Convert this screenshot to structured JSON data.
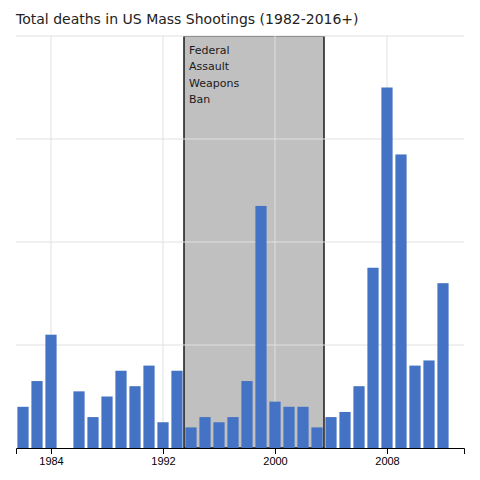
{
  "chart_data": {
    "type": "bar",
    "title": "Total deaths in US Mass Shootings (1982-2016+)",
    "x": [
      1982,
      1983,
      1984,
      1985,
      1986,
      1987,
      1988,
      1989,
      1990,
      1991,
      1992,
      1993,
      1994,
      1995,
      1996,
      1997,
      1998,
      1999,
      2000,
      2001,
      2002,
      2003,
      2004,
      2005,
      2006,
      2007,
      2008,
      2009,
      2010,
      2011,
      2012
    ],
    "values": [
      8,
      13,
      22,
      0,
      11,
      6,
      10,
      15,
      12,
      16,
      5,
      15,
      4,
      6,
      5,
      6,
      13,
      47,
      9,
      8,
      8,
      4,
      6,
      7,
      12,
      35,
      70,
      57,
      16,
      17,
      32
    ],
    "color": "#4472C4",
    "xlim": [
      1981.5,
      2013.5
    ],
    "xticks": [
      1984,
      1992,
      2000,
      2008
    ],
    "ylim": [
      0,
      80
    ],
    "yticks": [
      20,
      40,
      60,
      80
    ],
    "grid": true,
    "tick_labels": "x",
    "annotations": [
      {
        "text": "Federal\nAssault\nWeapons\nBan",
        "x_start": 1993.5,
        "x_end": 2003.5,
        "color": "#C0C0C0"
      }
    ]
  }
}
